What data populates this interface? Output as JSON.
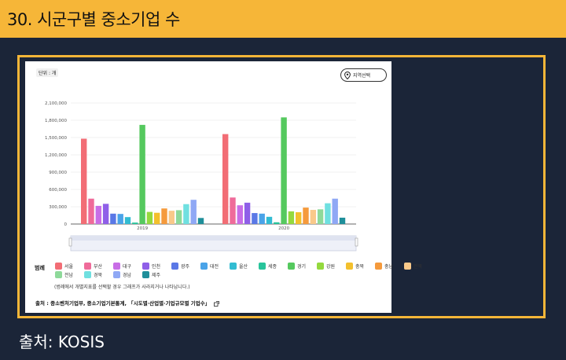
{
  "header": {
    "title": "30. 시군구별 중소기업 수"
  },
  "card": {
    "unit_badge": "단위 : 개",
    "region_button_label": "지역선택",
    "legend_title": "범례",
    "legend_note": "(범례에서 개별지표를 선택할 경우 그래프가 사라지거나 나타납니다.)",
    "source": "출처 :  중소벤처기업부, 중소기업기본통계,  「시도별·산업별·기업규모별 기업수」"
  },
  "footer": {
    "label": "출처: KOSIS"
  },
  "colors": {
    "서울": "#f26d75",
    "부산": "#ef6b9a",
    "대구": "#c86ee6",
    "인천": "#8f5fe8",
    "광주": "#5a78e6",
    "대전": "#4aa3e8",
    "울산": "#32bcd2",
    "세종": "#28c49b",
    "경기": "#55c95e",
    "강원": "#94d93e",
    "충북": "#f3c02d",
    "충남": "#f59a3c",
    "전북": "#f9c98a",
    "전남": "#8ed99a",
    "경북": "#6fe0e0",
    "경남": "#8fa8f5",
    "제주": "#1f8f9a"
  },
  "chart_data": {
    "type": "bar",
    "categories": [
      "2019",
      "2020"
    ],
    "y_ticks": [
      "0",
      "300,000",
      "600,000",
      "900,000",
      "1,200,000",
      "1,500,000",
      "1,800,000",
      "2,100,000"
    ],
    "ylim": [
      0,
      2100000
    ],
    "grid": true,
    "legend_position": "bottom",
    "series": [
      {
        "name": "서울",
        "values": [
          1480000,
          1560000
        ]
      },
      {
        "name": "부산",
        "values": [
          440000,
          460000
        ]
      },
      {
        "name": "대구",
        "values": [
          315000,
          325000
        ]
      },
      {
        "name": "인천",
        "values": [
          350000,
          370000
        ]
      },
      {
        "name": "광주",
        "values": [
          180000,
          190000
        ]
      },
      {
        "name": "대전",
        "values": [
          175000,
          180000
        ]
      },
      {
        "name": "울산",
        "values": [
          120000,
          125000
        ]
      },
      {
        "name": "세종",
        "values": [
          25000,
          30000
        ]
      },
      {
        "name": "경기",
        "values": [
          1720000,
          1850000
        ]
      },
      {
        "name": "강원",
        "values": [
          210000,
          220000
        ]
      },
      {
        "name": "충북",
        "values": [
          195000,
          205000
        ]
      },
      {
        "name": "충남",
        "values": [
          270000,
          285000
        ]
      },
      {
        "name": "전북",
        "values": [
          230000,
          245000
        ]
      },
      {
        "name": "전남",
        "values": [
          240000,
          255000
        ]
      },
      {
        "name": "경북",
        "values": [
          345000,
          360000
        ]
      },
      {
        "name": "경남",
        "values": [
          420000,
          440000
        ]
      },
      {
        "name": "제주",
        "values": [
          105000,
          110000
        ]
      }
    ]
  }
}
